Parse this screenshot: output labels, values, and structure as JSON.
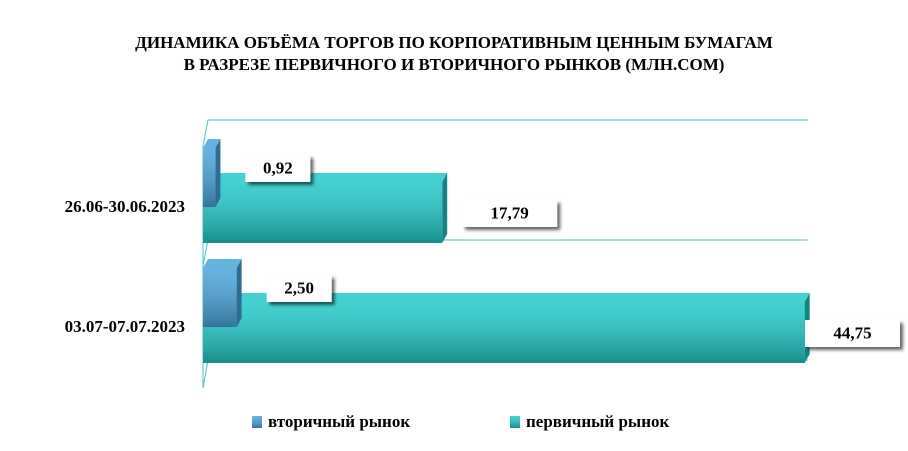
{
  "chart_data": {
    "type": "bar",
    "orientation": "horizontal",
    "title": "ДИНАМИКА ОБЪЁМА ТОРГОВ ПО КОРПОРАТИВНЫМ ЦЕННЫМ БУМАГАМ",
    "subtitle": "В РАЗРЕЗЕ ПЕРВИЧНОГО И ВТОРИЧНОГО РЫНКОВ  (МЛН.СОМ)",
    "categories": [
      "26.06-30.06.2023",
      "03.07-07.07.2023"
    ],
    "series": [
      {
        "name": "вторичный рынок",
        "color": "#4aa6dc",
        "values": [
          0.92,
          2.5
        ],
        "value_labels": [
          "0,92",
          "2,50"
        ]
      },
      {
        "name": "первичный рынок",
        "color": "#22c9c9",
        "values": [
          17.79,
          44.75
        ],
        "value_labels": [
          "17,79",
          "44,75"
        ]
      }
    ],
    "xlim": [
      0,
      45
    ]
  }
}
